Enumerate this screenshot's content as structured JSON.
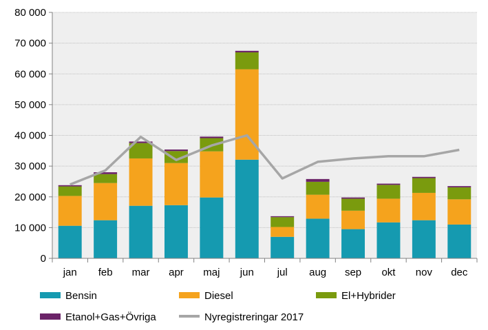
{
  "chart_data": {
    "type": "bar",
    "stacked": true,
    "title": "",
    "xlabel": "",
    "ylabel": "",
    "ylim": [
      0,
      80000
    ],
    "y_ticks": [
      0,
      10000,
      20000,
      30000,
      40000,
      50000,
      60000,
      70000,
      80000
    ],
    "y_tick_labels": [
      "0",
      "10 000",
      "20 000",
      "30 000",
      "40 000",
      "50 000",
      "60 000",
      "70 000",
      "80 000"
    ],
    "grid": true,
    "categories": [
      "jan",
      "feb",
      "mar",
      "apr",
      "maj",
      "jun",
      "jul",
      "aug",
      "sep",
      "okt",
      "nov",
      "dec"
    ],
    "series": [
      {
        "name": "Bensin",
        "color": "#159AB0",
        "values": [
          10600,
          12400,
          17100,
          17300,
          19800,
          32100,
          7000,
          12900,
          9500,
          11700,
          12400,
          11000
        ]
      },
      {
        "name": "Diesel",
        "color": "#F5A31D",
        "values": [
          9700,
          12100,
          15400,
          13700,
          15000,
          29400,
          3200,
          7800,
          6000,
          7700,
          8900,
          8200
        ]
      },
      {
        "name": "El+Hybrider",
        "color": "#7A9B0E",
        "values": [
          3100,
          2900,
          5000,
          3900,
          4300,
          5500,
          3200,
          4200,
          3900,
          4500,
          4800,
          3900
        ]
      },
      {
        "name": "Etanol+Gas+Övriga",
        "color": "#6B2368",
        "values": [
          400,
          600,
          500,
          500,
          500,
          500,
          300,
          900,
          400,
          400,
          400,
          400
        ]
      }
    ],
    "line_series": {
      "name": "Nyregistreringar 2017",
      "color": "#A6A6A6",
      "values": [
        24000,
        28600,
        39500,
        32000,
        36700,
        40000,
        26000,
        31400,
        32500,
        33200,
        33200,
        35300
      ]
    },
    "legend": {
      "placement": "bottom",
      "entries": [
        "Bensin",
        "Diesel",
        "El+Hybrider",
        "Etanol+Gas+Övriga",
        "Nyregistreringar 2017"
      ]
    }
  }
}
